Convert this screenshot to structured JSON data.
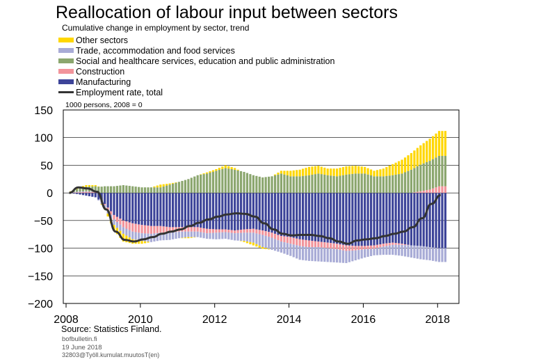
{
  "title": "Reallocation of labour input between sectors",
  "subtitle": "Cumulative change in employment by sector, trend",
  "source": "Source: Statistics Finland.",
  "website": "bofbulletin.fi",
  "date": "19 June 2018",
  "chart_id": "32803@Työll.kumulat.muutosT(en)",
  "legend": [
    {
      "label": "Other sectors",
      "color": "#FFD700",
      "kind": "bar"
    },
    {
      "label": "Trade, accommodation and food services",
      "color": "#A8ABD6",
      "kind": "bar"
    },
    {
      "label": "Social and healthcare services, education and public administration",
      "color": "#8BA66E",
      "kind": "bar"
    },
    {
      "label": "Construction",
      "color": "#F2949B",
      "kind": "bar"
    },
    {
      "label": "Manufacturing",
      "color": "#3D4499",
      "kind": "bar"
    },
    {
      "label": "Employment rate, total",
      "color": "#333333",
      "kind": "line"
    }
  ],
  "chart_data": {
    "type": "bar",
    "stacked": true,
    "frequency": "quarterly",
    "y_unit_label": "1000 persons, 2008 = 0",
    "ylim": [
      -200,
      150
    ],
    "yticks": [
      150,
      100,
      50,
      0,
      -50,
      -100,
      -150,
      -200
    ],
    "x_tick_labels": [
      "2008",
      "2010",
      "2012",
      "2014",
      "2016",
      "2018"
    ],
    "x_start": "2008Q1",
    "x_end": "2018Q1",
    "grid": true,
    "legend_position": "top-left",
    "series": [
      {
        "name": "Manufacturing",
        "color": "#3D4499",
        "values": [
          0,
          -2,
          -5,
          -8,
          -20,
          -40,
          -50,
          -55,
          -58,
          -60,
          -60,
          -62,
          -62,
          -62,
          -62,
          -65,
          -66,
          -66,
          -68,
          -66,
          -65,
          -68,
          -72,
          -78,
          -80,
          -84,
          -86,
          -88,
          -90,
          -92,
          -95,
          -96,
          -96,
          -95,
          -92,
          -90,
          -92,
          -95,
          -96,
          -98,
          -100
        ]
      },
      {
        "name": "Construction",
        "color": "#F2949B",
        "values": [
          0,
          1,
          2,
          2,
          -2,
          -8,
          -12,
          -15,
          -15,
          -14,
          -12,
          -10,
          -8,
          -8,
          -8,
          -8,
          -6,
          -5,
          -5,
          -6,
          -7,
          -8,
          -9,
          -10,
          -12,
          -12,
          -12,
          -10,
          -10,
          -10,
          -10,
          -8,
          -6,
          -6,
          -5,
          -4,
          -2,
          0,
          3,
          6,
          12
        ]
      },
      {
        "name": "Trade, accommodation and food services",
        "color": "#A8ABD6",
        "values": [
          0,
          1,
          1,
          0,
          -5,
          -10,
          -12,
          -14,
          -14,
          -15,
          -14,
          -13,
          -12,
          -10,
          -10,
          -10,
          -12,
          -12,
          -13,
          -15,
          -18,
          -22,
          -22,
          -20,
          -22,
          -25,
          -25,
          -26,
          -25,
          -24,
          -22,
          -18,
          -15,
          -12,
          -15,
          -18,
          -20,
          -22,
          -24,
          -24,
          -25
        ]
      },
      {
        "name": "Social and healthcare services, education and public administration",
        "color": "#8BA66E",
        "values": [
          0,
          5,
          8,
          10,
          12,
          12,
          14,
          12,
          10,
          10,
          10,
          15,
          20,
          25,
          32,
          35,
          40,
          45,
          42,
          38,
          32,
          28,
          30,
          35,
          30,
          30,
          32,
          35,
          32,
          30,
          33,
          35,
          35,
          30,
          30,
          32,
          35,
          42,
          48,
          52,
          55
        ]
      },
      {
        "name": "Other sectors",
        "color": "#FFD700",
        "values": [
          0,
          2,
          3,
          2,
          -3,
          -10,
          -14,
          -8,
          -5,
          0,
          5,
          2,
          0,
          -2,
          0,
          2,
          3,
          5,
          3,
          -2,
          -5,
          -3,
          0,
          5,
          10,
          12,
          15,
          14,
          12,
          14,
          15,
          14,
          12,
          10,
          14,
          20,
          25,
          30,
          35,
          40,
          45
        ]
      },
      {
        "name": "Employment rate, total",
        "color": "#333333",
        "kind": "line",
        "values": [
          0,
          10,
          8,
          2,
          -30,
          -70,
          -85,
          -88,
          -84,
          -80,
          -74,
          -70,
          -66,
          -60,
          -54,
          -48,
          -43,
          -39,
          -37,
          -38,
          -43,
          -55,
          -66,
          -74,
          -77,
          -76,
          -76,
          -78,
          -82,
          -88,
          -92,
          -86,
          -84,
          -82,
          -78,
          -74,
          -70,
          -62,
          -46,
          -20,
          -4
        ]
      }
    ]
  }
}
